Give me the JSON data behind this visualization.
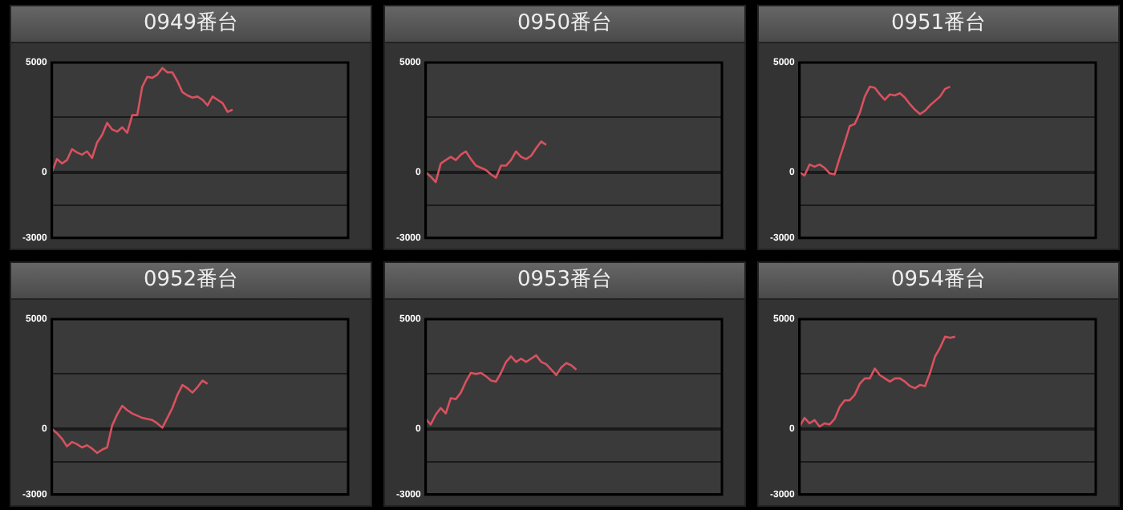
{
  "chart_data": [
    {
      "type": "line",
      "title": "0949番台",
      "categories": [
        null,
        null,
        null,
        null,
        null,
        null,
        null,
        null,
        null,
        null,
        null,
        null,
        null,
        null,
        null,
        null,
        null,
        null,
        null,
        null,
        null,
        null,
        null,
        null,
        null,
        null,
        null,
        null,
        null,
        null,
        null,
        null,
        null,
        null,
        null,
        null,
        null,
        null,
        null,
        null,
        null,
        null,
        null,
        null,
        null,
        null,
        null,
        null,
        null,
        null,
        null,
        null,
        null,
        null,
        null,
        null,
        null,
        null,
        null,
        null
      ],
      "series": [
        {
          "color": "#d9515f",
          "values": [
            0,
            600,
            400,
            550,
            1050,
            900,
            800,
            950,
            650,
            1350,
            1700,
            2250,
            1950,
            1850,
            2050,
            1800,
            2600,
            2600,
            3900,
            4350,
            4300,
            4450,
            4750,
            4550,
            4550,
            4150,
            3650,
            3500,
            3400,
            3450,
            3300,
            3050,
            3450,
            3300,
            3150,
            2750,
            2850,
            null,
            null,
            null,
            null,
            null,
            null,
            null,
            null,
            null,
            null,
            null,
            null,
            null,
            null,
            null,
            null,
            null,
            null,
            null,
            null,
            null,
            null,
            null
          ]
        }
      ],
      "ylim": [
        -3000,
        5000
      ],
      "yticks": [
        {
          "value": -3000,
          "label": "-3000"
        },
        {
          "value": -1500,
          "label": null
        },
        {
          "value": 0,
          "label": "0"
        },
        {
          "value": 2500,
          "label": null
        },
        {
          "value": 5000,
          "label": "5000"
        }
      ],
      "grid": "y",
      "legend": false,
      "tick_labels": "y",
      "marker": "none"
    },
    {
      "type": "line",
      "title": "0950番台",
      "categories": [
        null,
        null,
        null,
        null,
        null,
        null,
        null,
        null,
        null,
        null,
        null,
        null,
        null,
        null,
        null,
        null,
        null,
        null,
        null,
        null,
        null,
        null,
        null,
        null,
        null,
        null,
        null,
        null,
        null,
        null,
        null,
        null,
        null,
        null,
        null,
        null,
        null,
        null,
        null,
        null,
        null,
        null,
        null,
        null,
        null,
        null,
        null,
        null,
        null,
        null,
        null,
        null,
        null,
        null,
        null,
        null,
        null,
        null,
        null,
        null
      ],
      "series": [
        {
          "color": "#d9515f",
          "values": [
            0,
            -200,
            -450,
            400,
            550,
            700,
            550,
            800,
            950,
            600,
            300,
            200,
            100,
            -100,
            -250,
            300,
            300,
            550,
            950,
            700,
            600,
            750,
            1100,
            1400,
            1250,
            null,
            null,
            null,
            null,
            null,
            null,
            null,
            null,
            null,
            null,
            null,
            null,
            null,
            null,
            null,
            null,
            null,
            null,
            null,
            null,
            null,
            null,
            null,
            null,
            null,
            null,
            null,
            null,
            null,
            null,
            null,
            null,
            null,
            null,
            null
          ]
        }
      ],
      "ylim": [
        -3000,
        5000
      ],
      "yticks": [
        {
          "value": -3000,
          "label": "-3000"
        },
        {
          "value": -1500,
          "label": null
        },
        {
          "value": 0,
          "label": "0"
        },
        {
          "value": 2500,
          "label": null
        },
        {
          "value": 5000,
          "label": "5000"
        }
      ],
      "grid": "y",
      "legend": false,
      "tick_labels": "y",
      "marker": "none"
    },
    {
      "type": "line",
      "title": "0951番台",
      "categories": [
        null,
        null,
        null,
        null,
        null,
        null,
        null,
        null,
        null,
        null,
        null,
        null,
        null,
        null,
        null,
        null,
        null,
        null,
        null,
        null,
        null,
        null,
        null,
        null,
        null,
        null,
        null,
        null,
        null,
        null,
        null,
        null,
        null,
        null,
        null,
        null,
        null,
        null,
        null,
        null,
        null,
        null,
        null,
        null,
        null,
        null,
        null,
        null,
        null,
        null,
        null,
        null,
        null,
        null,
        null,
        null,
        null,
        null,
        null,
        null
      ],
      "series": [
        {
          "color": "#d9515f",
          "values": [
            0,
            -150,
            350,
            250,
            350,
            200,
            -50,
            -100,
            650,
            1350,
            2100,
            2200,
            2700,
            3450,
            3900,
            3850,
            3550,
            3300,
            3550,
            3500,
            3600,
            3400,
            3100,
            2850,
            2650,
            2800,
            3050,
            3250,
            3450,
            3800,
            3900,
            null,
            null,
            null,
            null,
            null,
            null,
            null,
            null,
            null,
            null,
            null,
            null,
            null,
            null,
            null,
            null,
            null,
            null,
            null,
            null,
            null,
            null,
            null,
            null,
            null,
            null,
            null,
            null,
            null
          ]
        }
      ],
      "ylim": [
        -3000,
        5000
      ],
      "yticks": [
        {
          "value": -3000,
          "label": "-3000"
        },
        {
          "value": -1500,
          "label": null
        },
        {
          "value": 0,
          "label": "0"
        },
        {
          "value": 2500,
          "label": null
        },
        {
          "value": 5000,
          "label": "5000"
        }
      ],
      "grid": "y",
      "legend": false,
      "tick_labels": "y",
      "marker": "none"
    },
    {
      "type": "line",
      "title": "0952番台",
      "categories": [
        null,
        null,
        null,
        null,
        null,
        null,
        null,
        null,
        null,
        null,
        null,
        null,
        null,
        null,
        null,
        null,
        null,
        null,
        null,
        null,
        null,
        null,
        null,
        null,
        null,
        null,
        null,
        null,
        null,
        null,
        null,
        null,
        null,
        null,
        null,
        null,
        null,
        null,
        null,
        null,
        null,
        null,
        null,
        null,
        null,
        null,
        null,
        null,
        null,
        null,
        null,
        null,
        null,
        null,
        null,
        null,
        null,
        null,
        null,
        null
      ],
      "series": [
        {
          "color": "#d9515f",
          "values": [
            0,
            -200,
            -450,
            -800,
            -600,
            -700,
            -850,
            -750,
            -900,
            -1100,
            -950,
            -850,
            150,
            650,
            1050,
            850,
            700,
            600,
            500,
            450,
            400,
            250,
            50,
            500,
            950,
            1550,
            2000,
            1850,
            1650,
            1900,
            2200,
            2050,
            null,
            null,
            null,
            null,
            null,
            null,
            null,
            null,
            null,
            null,
            null,
            null,
            null,
            null,
            null,
            null,
            null,
            null,
            null,
            null,
            null,
            null,
            null,
            null,
            null,
            null,
            null,
            null
          ]
        }
      ],
      "ylim": [
        -3000,
        5000
      ],
      "yticks": [
        {
          "value": -3000,
          "label": "-3000"
        },
        {
          "value": -1500,
          "label": null
        },
        {
          "value": 0,
          "label": "0"
        },
        {
          "value": 2500,
          "label": null
        },
        {
          "value": 5000,
          "label": "5000"
        }
      ],
      "grid": "y",
      "legend": false,
      "tick_labels": "y",
      "marker": "none"
    },
    {
      "type": "line",
      "title": "0953番台",
      "categories": [
        null,
        null,
        null,
        null,
        null,
        null,
        null,
        null,
        null,
        null,
        null,
        null,
        null,
        null,
        null,
        null,
        null,
        null,
        null,
        null,
        null,
        null,
        null,
        null,
        null,
        null,
        null,
        null,
        null,
        null,
        null,
        null,
        null,
        null,
        null,
        null,
        null,
        null,
        null,
        null,
        null,
        null,
        null,
        null,
        null,
        null,
        null,
        null,
        null,
        null,
        null,
        null,
        null,
        null,
        null,
        null,
        null,
        null,
        null,
        null
      ],
      "series": [
        {
          "color": "#d9515f",
          "values": [
            450,
            200,
            650,
            950,
            700,
            1400,
            1350,
            1650,
            2150,
            2550,
            2500,
            2550,
            2400,
            2200,
            2150,
            2550,
            3050,
            3300,
            3050,
            3200,
            3050,
            3200,
            3350,
            3050,
            2950,
            2700,
            2450,
            2800,
            3000,
            2900,
            2700,
            null,
            null,
            null,
            null,
            null,
            null,
            null,
            null,
            null,
            null,
            null,
            null,
            null,
            null,
            null,
            null,
            null,
            null,
            null,
            null,
            null,
            null,
            null,
            null,
            null,
            null,
            null,
            null,
            null
          ]
        }
      ],
      "ylim": [
        -3000,
        5000
      ],
      "yticks": [
        {
          "value": -3000,
          "label": "-3000"
        },
        {
          "value": -1500,
          "label": null
        },
        {
          "value": 0,
          "label": "0"
        },
        {
          "value": 2500,
          "label": null
        },
        {
          "value": 5000,
          "label": "5000"
        }
      ],
      "grid": "y",
      "legend": false,
      "tick_labels": "y",
      "marker": "none"
    },
    {
      "type": "line",
      "title": "0954番台",
      "categories": [
        null,
        null,
        null,
        null,
        null,
        null,
        null,
        null,
        null,
        null,
        null,
        null,
        null,
        null,
        null,
        null,
        null,
        null,
        null,
        null,
        null,
        null,
        null,
        null,
        null,
        null,
        null,
        null,
        null,
        null,
        null,
        null,
        null,
        null,
        null,
        null,
        null,
        null,
        null,
        null,
        null,
        null,
        null,
        null,
        null,
        null,
        null,
        null,
        null,
        null,
        null,
        null,
        null,
        null,
        null,
        null,
        null,
        null,
        null,
        null
      ],
      "series": [
        {
          "color": "#d9515f",
          "values": [
            100,
            500,
            250,
            400,
            100,
            250,
            200,
            450,
            1000,
            1300,
            1300,
            1550,
            2050,
            2300,
            2300,
            2750,
            2450,
            2300,
            2150,
            2300,
            2300,
            2150,
            1950,
            1850,
            2000,
            1950,
            2550,
            3300,
            3700,
            4200,
            4150,
            4200,
            null,
            null,
            null,
            null,
            null,
            null,
            null,
            null,
            null,
            null,
            null,
            null,
            null,
            null,
            null,
            null,
            null,
            null,
            null,
            null,
            null,
            null,
            null,
            null,
            null,
            null,
            null,
            null
          ]
        }
      ],
      "ylim": [
        -3000,
        5000
      ],
      "yticks": [
        {
          "value": -3000,
          "label": "-3000"
        },
        {
          "value": -1500,
          "label": null
        },
        {
          "value": 0,
          "label": "0"
        },
        {
          "value": 2500,
          "label": null
        },
        {
          "value": 5000,
          "label": "5000"
        }
      ],
      "grid": "y",
      "legend": false,
      "tick_labels": "y",
      "marker": "none"
    }
  ]
}
